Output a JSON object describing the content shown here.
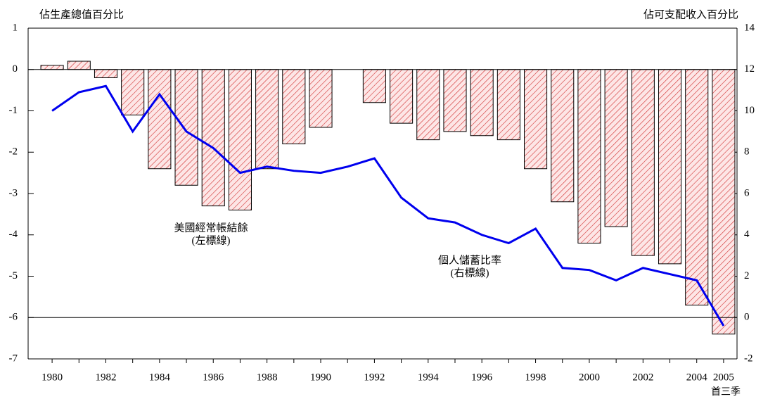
{
  "chart_data": {
    "type": "bar",
    "y_label": "佔生產總值百分比",
    "y2_label": "佔可支配收入百分比",
    "categories": [
      "1980",
      null,
      "1982",
      null,
      "1984",
      null,
      "1986",
      null,
      "1988",
      null,
      "1990",
      null,
      "1992",
      null,
      "1994",
      null,
      "1996",
      null,
      "1998",
      null,
      "2000",
      null,
      "2002",
      null,
      "2004",
      "2005"
    ],
    "category_note": "首三季",
    "ylim": [
      -7,
      1
    ],
    "yticks": [
      1,
      0,
      -1,
      -2,
      -3,
      -4,
      -5,
      -6,
      -7
    ],
    "y2lim": [
      -2,
      14
    ],
    "y2ticks": [
      14,
      12,
      10,
      8,
      6,
      4,
      2,
      0,
      -2
    ],
    "reference_lines": [
      0,
      -6
    ],
    "series": [
      {
        "name": "美國經常帳結餘",
        "note": "(左標線)",
        "type": "bar",
        "color": "#d03030",
        "fill": "#fde6e6",
        "values": [
          0.1,
          0.2,
          -0.2,
          -1.1,
          -2.4,
          -2.8,
          -3.3,
          -3.4,
          -2.4,
          -1.8,
          -1.4,
          null,
          -0.8,
          -1.3,
          -1.7,
          -1.5,
          -1.6,
          -1.7,
          -2.4,
          -3.2,
          -4.2,
          -3.8,
          -4.5,
          -4.7,
          -5.7,
          -6.4
        ]
      },
      {
        "name": "個人儲蓄比率",
        "note": "(右標線)",
        "type": "line",
        "axis": "y2",
        "color": "#0000ee",
        "values": [
          10.0,
          10.9,
          11.2,
          9.0,
          10.8,
          9.0,
          8.2,
          7.0,
          7.3,
          7.1,
          7.0,
          7.3,
          7.7,
          5.8,
          4.8,
          4.6,
          4.0,
          3.6,
          4.3,
          2.4,
          2.3,
          1.8,
          2.4,
          2.1,
          1.8,
          -0.4
        ]
      }
    ]
  }
}
